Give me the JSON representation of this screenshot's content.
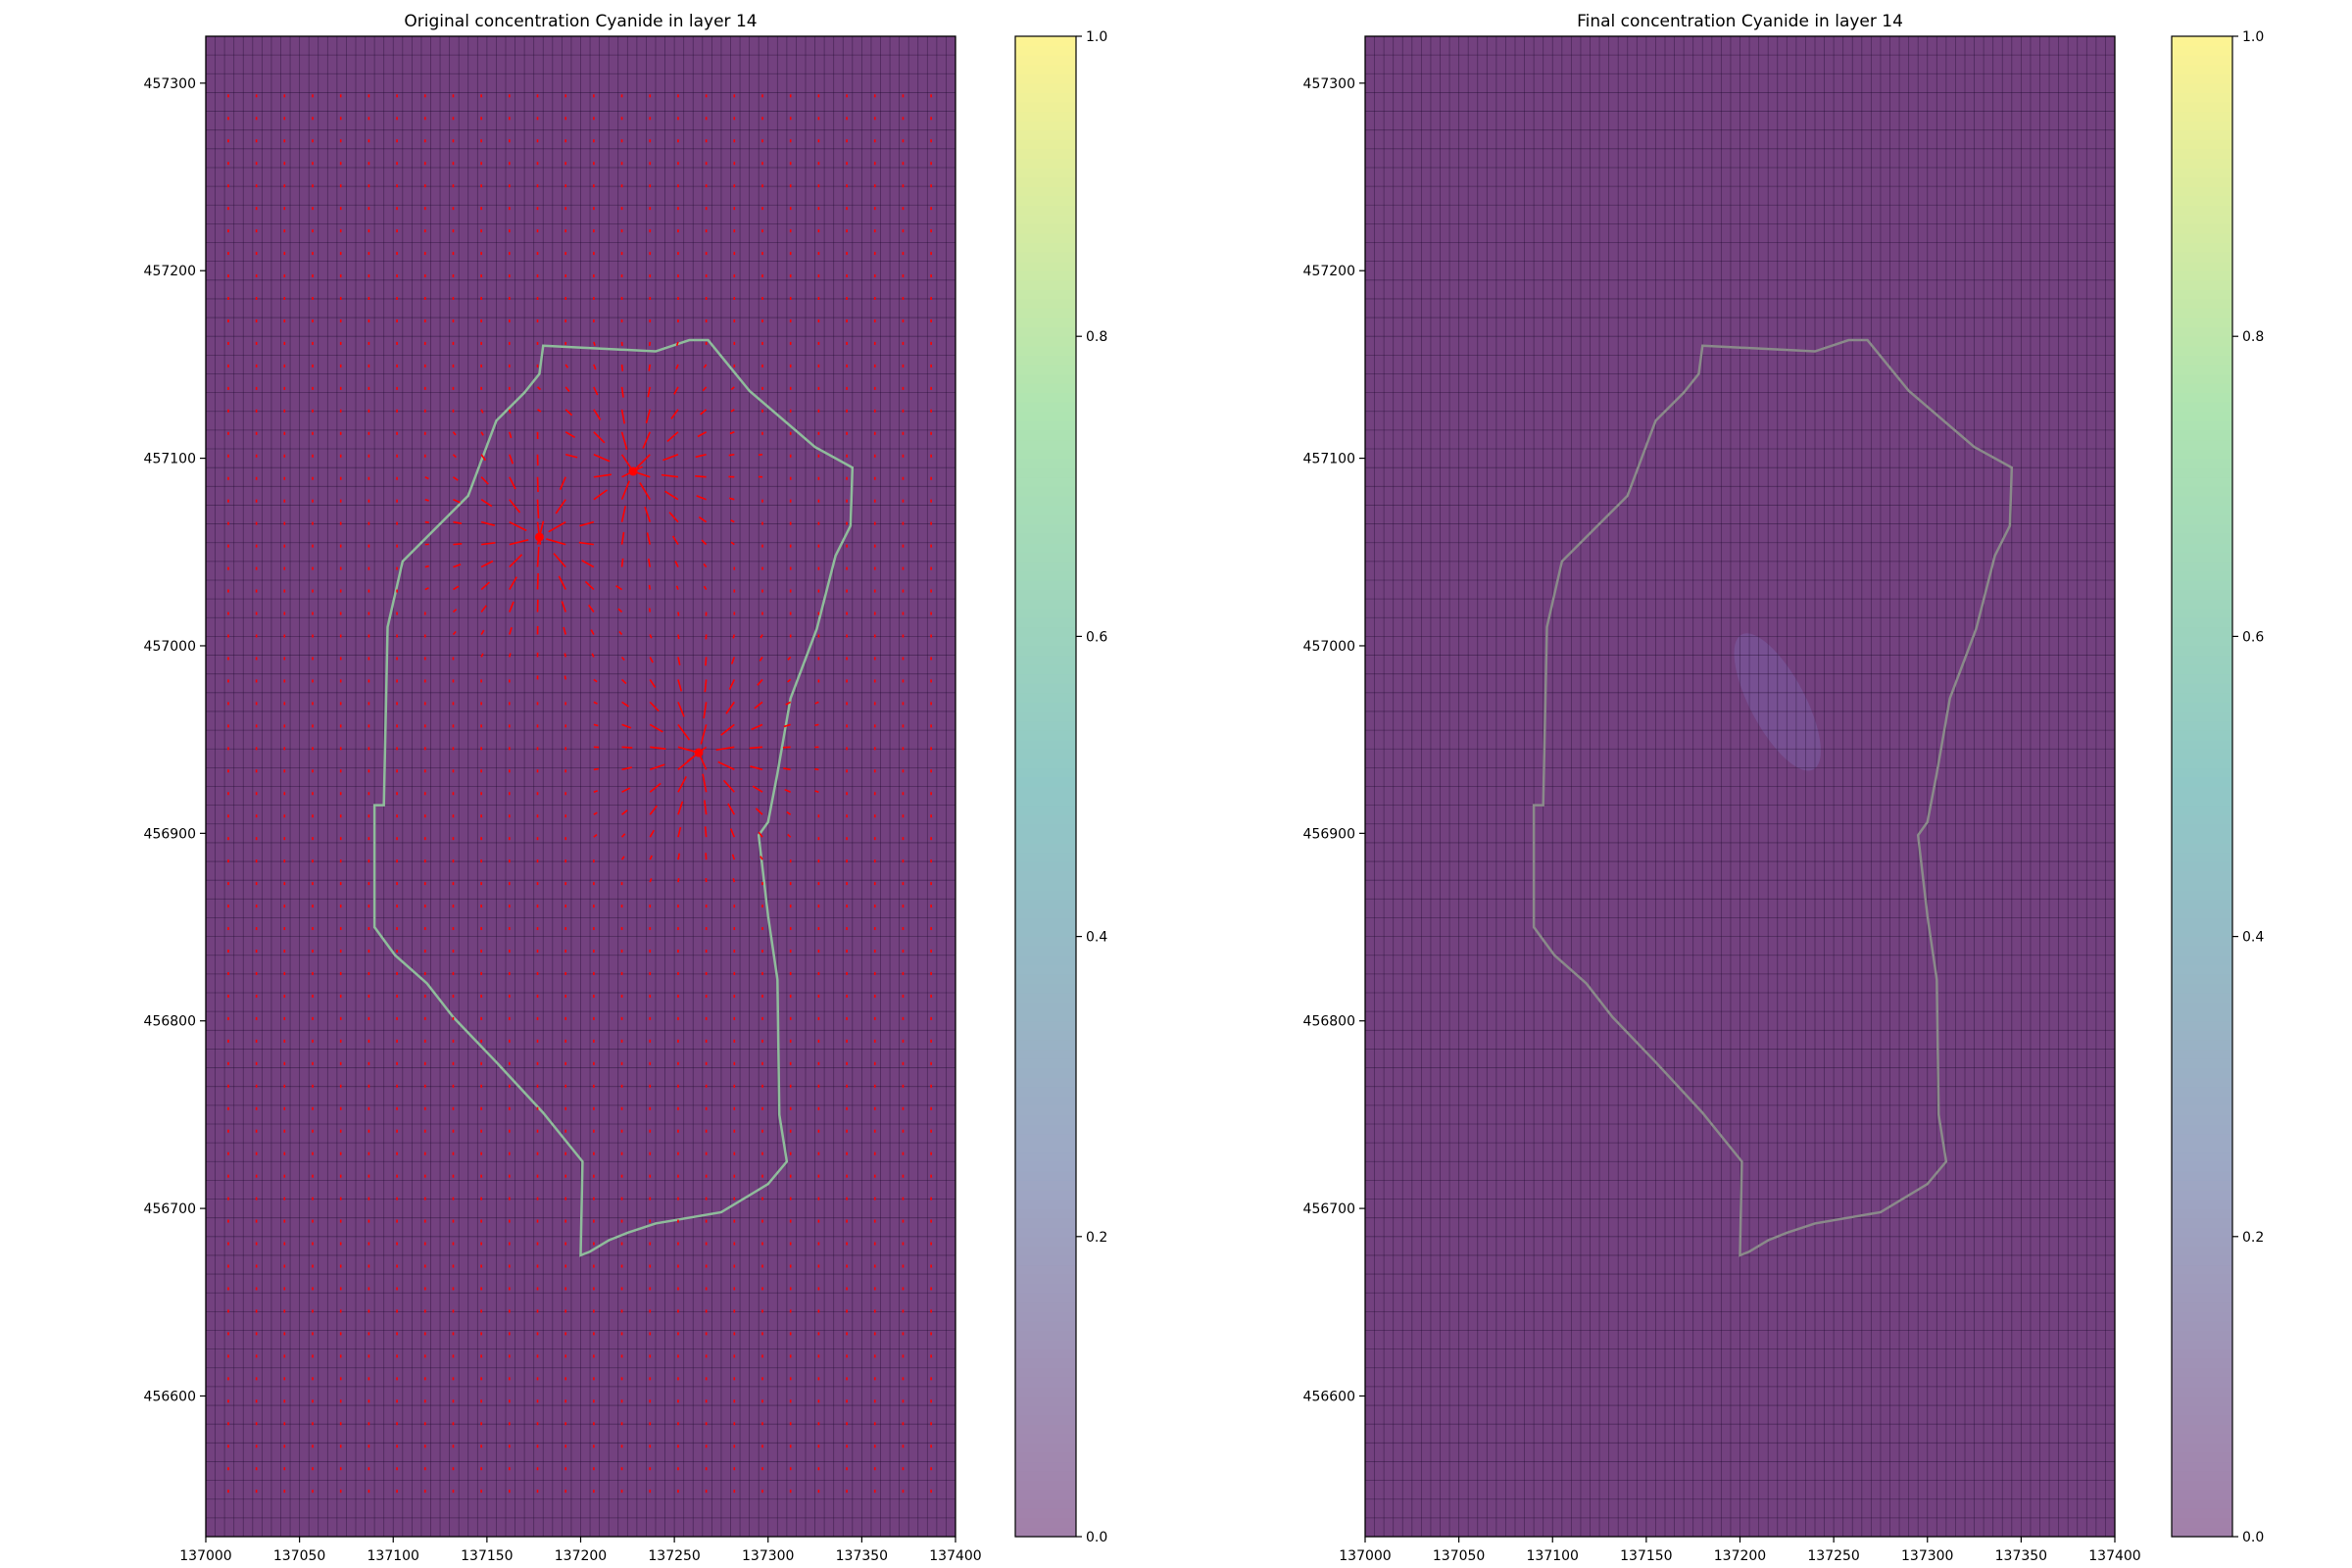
{
  "chart_data": [
    {
      "type": "heatmap",
      "title": "Original concentration Cyanide in layer 14",
      "xlabel": "",
      "ylabel": "",
      "xlim": [
        137000,
        137400
      ],
      "ylim": [
        456525,
        457325
      ],
      "xticks": [
        "137000",
        "137050",
        "137100",
        "137150",
        "137200",
        "137250",
        "137300",
        "137350",
        "137400"
      ],
      "yticks": [
        "456600",
        "456700",
        "456800",
        "456900",
        "457000",
        "457100",
        "457200",
        "457300"
      ],
      "grid": true,
      "grid_x_step": 5,
      "grid_y_step": 10,
      "colormap": "viridis",
      "alpha": 0.75,
      "background_value": 0.0,
      "colorbar": {
        "range": [
          0,
          1
        ],
        "ticks": [
          "0.0",
          "0.2",
          "0.4",
          "0.6",
          "0.8",
          "1.0"
        ]
      },
      "boundary_color": "#8fbc9b",
      "boundary_polygon": [
        [
          137180,
          457160
        ],
        [
          137240,
          457157
        ],
        [
          137258,
          457163
        ],
        [
          137268,
          457163
        ],
        [
          137290,
          457136
        ],
        [
          137325,
          457106
        ],
        [
          137345,
          457095
        ],
        [
          137344,
          457064
        ],
        [
          137336,
          457048
        ],
        [
          137326,
          457009
        ],
        [
          137312,
          456972
        ],
        [
          137305,
          456932
        ],
        [
          137300,
          456906
        ],
        [
          137295,
          456899
        ],
        [
          137300,
          456856
        ],
        [
          137305,
          456822
        ],
        [
          137306,
          456750
        ],
        [
          137310,
          456725
        ],
        [
          137300,
          456713
        ],
        [
          137275,
          456698
        ],
        [
          137240,
          456692
        ],
        [
          137225,
          456687
        ],
        [
          137215,
          456683
        ],
        [
          137205,
          456677
        ],
        [
          137200,
          456675
        ],
        [
          137201,
          456725
        ],
        [
          137180,
          456751
        ],
        [
          137155,
          456778
        ],
        [
          137132,
          456802
        ],
        [
          137118,
          456820
        ],
        [
          137101,
          456835
        ],
        [
          137090,
          456850
        ],
        [
          137090,
          456915
        ],
        [
          137095,
          456915
        ],
        [
          137097,
          457010
        ],
        [
          137105,
          457045
        ],
        [
          137120,
          457060
        ],
        [
          137140,
          457080
        ],
        [
          137155,
          457120
        ],
        [
          137170,
          457135
        ],
        [
          137178,
          457145
        ]
      ],
      "arrow_color": "#ff0000",
      "wells": [
        {
          "x": 137178,
          "y": 457058,
          "type": "extraction"
        },
        {
          "x": 137228,
          "y": 457093,
          "type": "extraction"
        },
        {
          "x": 137263,
          "y": 456943,
          "type": "extraction"
        }
      ]
    },
    {
      "type": "heatmap",
      "title": "Final concentration Cyanide in layer 14",
      "xlabel": "",
      "ylabel": "",
      "xlim": [
        137000,
        137400
      ],
      "ylim": [
        456525,
        457325
      ],
      "xticks": [
        "137000",
        "137050",
        "137100",
        "137150",
        "137200",
        "137250",
        "137300",
        "137350",
        "137400"
      ],
      "yticks": [
        "456600",
        "456700",
        "456800",
        "456900",
        "457000",
        "457100",
        "457200",
        "457300"
      ],
      "grid": true,
      "grid_x_step": 5,
      "grid_y_step": 10,
      "colormap": "viridis",
      "alpha": 0.75,
      "background_value": 0.0,
      "colorbar": {
        "range": [
          0,
          1
        ],
        "ticks": [
          "0.0",
          "0.2",
          "0.4",
          "0.6",
          "0.8",
          "1.0"
        ]
      },
      "boundary_color": "#8a8a8a",
      "plume": {
        "center": [
          137220,
          456970
        ],
        "value": 0.04
      }
    }
  ]
}
